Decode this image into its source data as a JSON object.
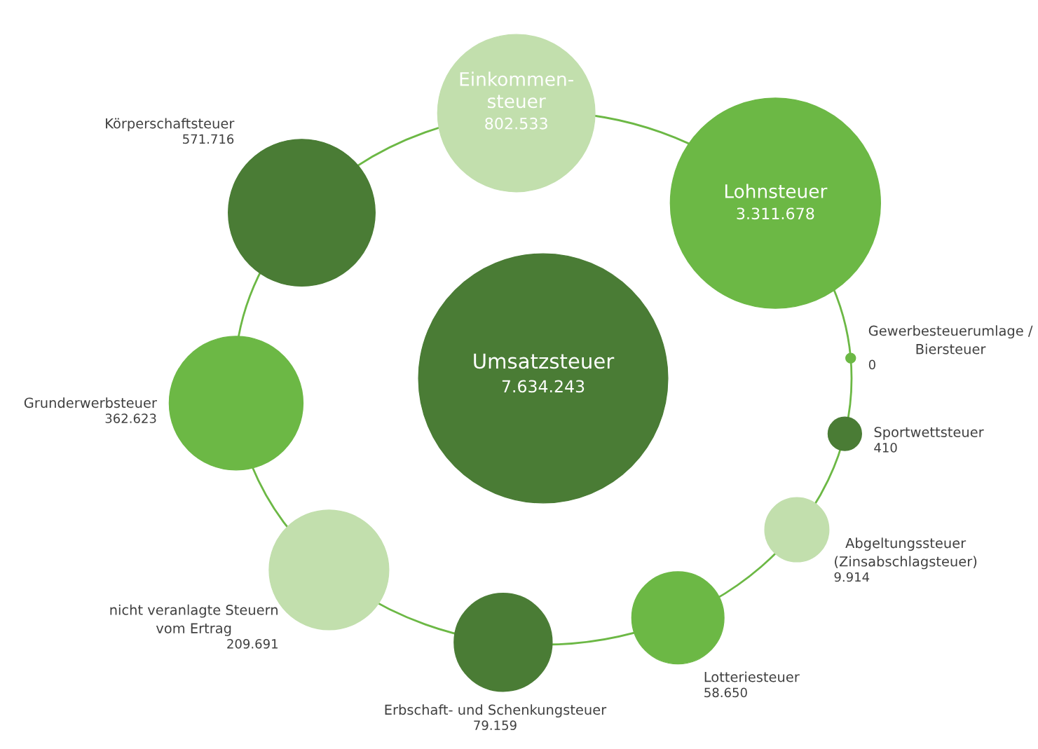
{
  "chart_data": {
    "type": "other",
    "categories": [
      "Umsatzsteuer",
      "Einkommen-\nsteuer",
      "Lohnsteuer",
      "Gewerbesteuerumlage /\nBiersteuer",
      "Sportwettsteuer",
      "Abgeltungssteuer\n(Zinsabschlagsteuer)",
      "Lotteriesteuer",
      "Erbschaft- und Schenkungsteuer",
      "nicht veranlagte Steuern\nvom Ertrag",
      "Grunderwerbsteuer",
      "Körperschaftsteuer"
    ],
    "values": [
      7634243,
      802533,
      3311678,
      0,
      410,
      9914,
      58650,
      79159,
      209691,
      362623,
      571716
    ],
    "colors": [
      "#4a7c35",
      "#c2dfad",
      "#6cb845",
      "#6cb845",
      "#4a7c35",
      "#c2dfad",
      "#6cb845",
      "#4a7c35",
      "#c2dfad",
      "#6cb845",
      "#4a7c35"
    ],
    "value_labels": [
      "7.634.243",
      "802.533",
      "3.311.678",
      "0",
      "410",
      "9.914",
      "58.650",
      "79.159",
      "209.691",
      "362.623",
      "571.716"
    ]
  }
}
